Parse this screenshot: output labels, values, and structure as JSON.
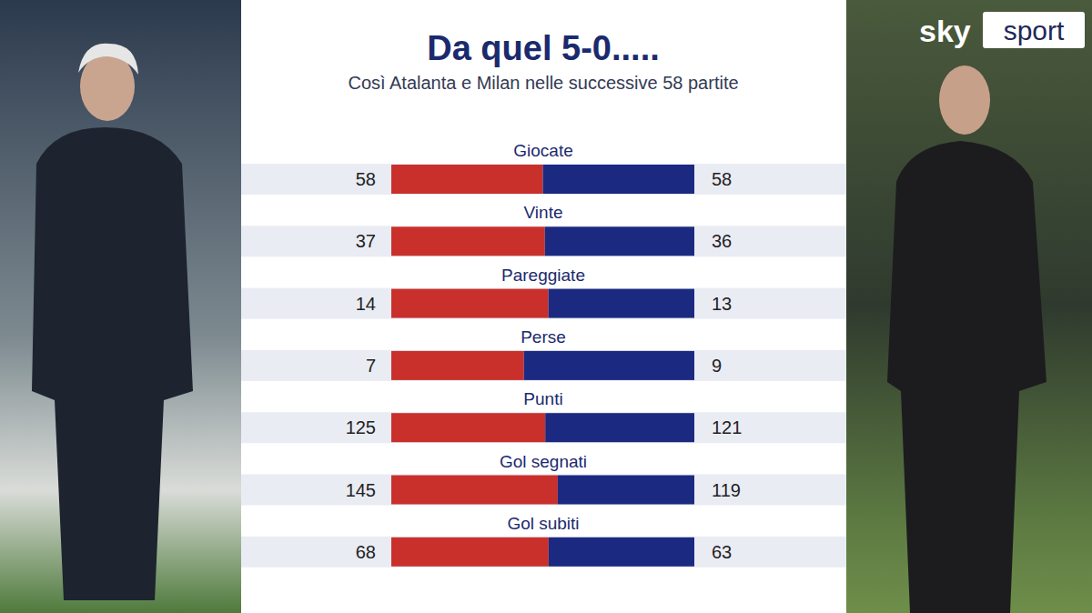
{
  "chart_data": {
    "type": "bar",
    "orientation": "horizontal",
    "stacked": true,
    "data_labels": true,
    "title": "Da quel 5-0.....",
    "subtitle": "Così Atalanta e Milan nelle successive 58 partite",
    "categories": [
      "Giocate",
      "Vinte",
      "Pareggiate",
      "Perse",
      "Punti",
      "Gol segnati",
      "Gol subiti"
    ],
    "series": [
      {
        "color": "#c9302c",
        "values": [
          58,
          37,
          14,
          7,
          125,
          145,
          68
        ]
      },
      {
        "color": "#1b2a80",
        "values": [
          58,
          36,
          13,
          9,
          121,
          119,
          63
        ]
      }
    ]
  },
  "logo": {
    "brand": "sky",
    "label": "sport"
  }
}
